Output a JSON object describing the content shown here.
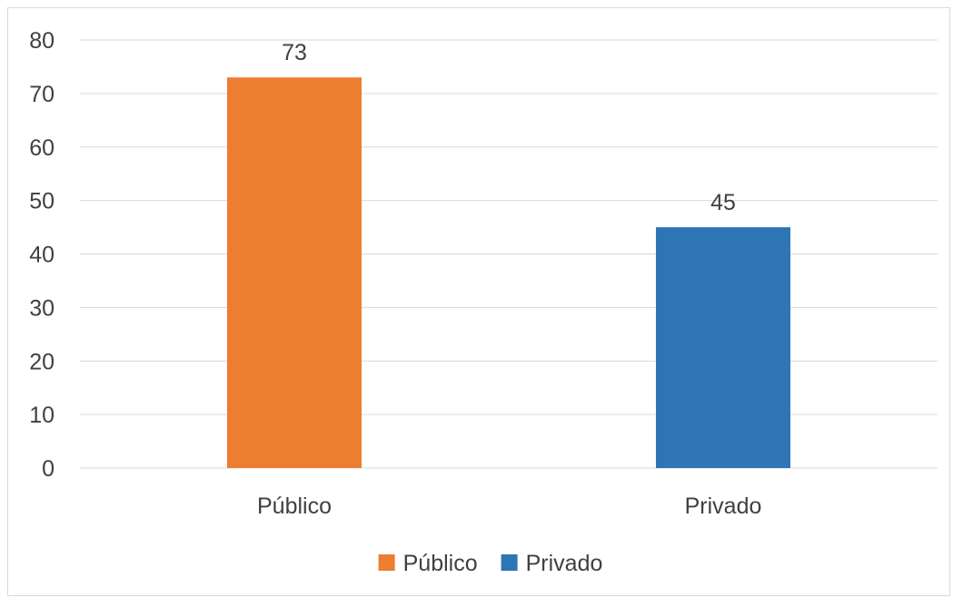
{
  "chart_data": {
    "type": "bar",
    "categories": [
      "Público",
      "Privado"
    ],
    "values": [
      73,
      45
    ],
    "data_labels": [
      "73",
      "45"
    ],
    "colors": [
      "#ED7D31",
      "#2E75B6"
    ],
    "title": "",
    "xlabel": "",
    "ylabel": "",
    "ylim": [
      0,
      80
    ],
    "yticks": [
      0,
      10,
      20,
      30,
      40,
      50,
      60,
      70,
      80
    ],
    "grid": true,
    "legend": {
      "placement": "bottom",
      "entries": [
        {
          "label": "Público",
          "color": "#ED7D31"
        },
        {
          "label": "Privado",
          "color": "#2E75B6"
        }
      ]
    }
  }
}
